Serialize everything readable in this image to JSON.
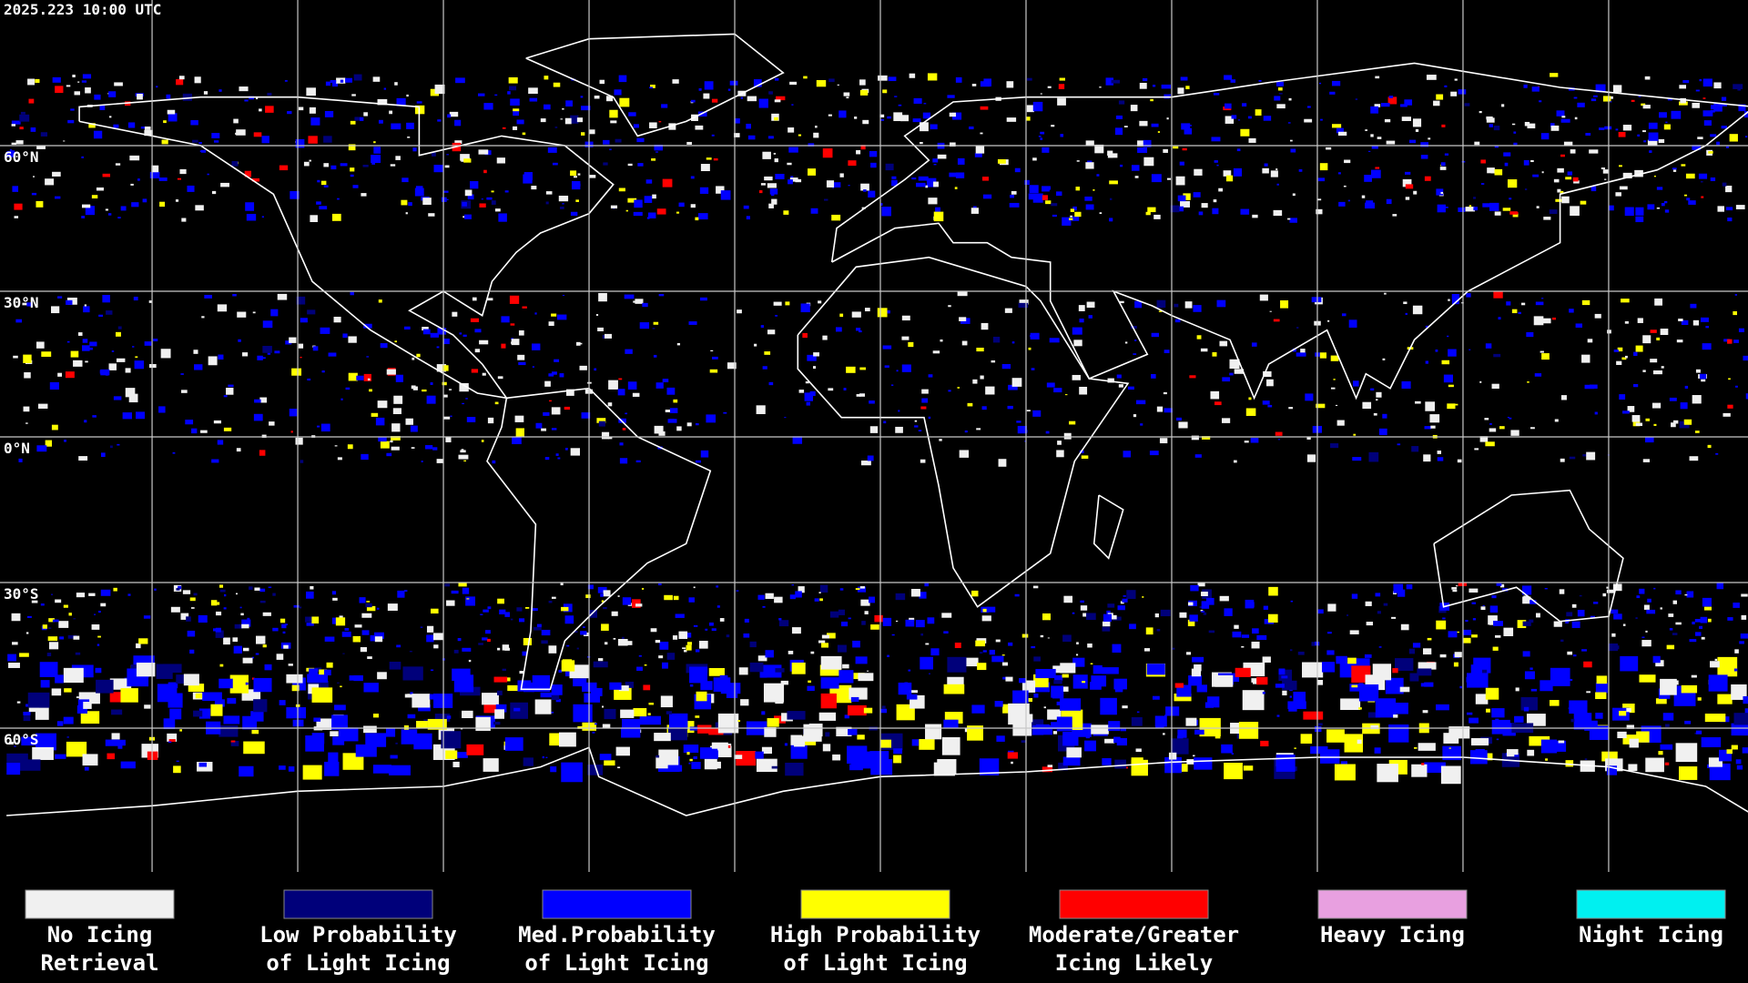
{
  "header": {
    "title": "2025.223 10:00 UTC"
  },
  "latitude_labels": [
    "60°N",
    "30°N",
    "0°N",
    "30°S",
    "60°S"
  ],
  "legend": [
    {
      "color": "#f0f0f0",
      "lines": [
        "No Icing",
        "Retrieval"
      ]
    },
    {
      "color": "#00007a",
      "lines": [
        "Low Probability",
        "of Light Icing"
      ]
    },
    {
      "color": "#0000ff",
      "lines": [
        "Med.Probability",
        "of Light Icing"
      ]
    },
    {
      "color": "#ffff00",
      "lines": [
        "High Probability",
        "of Light Icing"
      ]
    },
    {
      "color": "#ff0000",
      "lines": [
        "Moderate/Greater",
        "Icing Likely"
      ]
    },
    {
      "color": "#e8a0e0",
      "lines": [
        "Heavy Icing"
      ]
    },
    {
      "color": "#00f0f0",
      "lines": [
        "Night Icing"
      ]
    }
  ]
}
